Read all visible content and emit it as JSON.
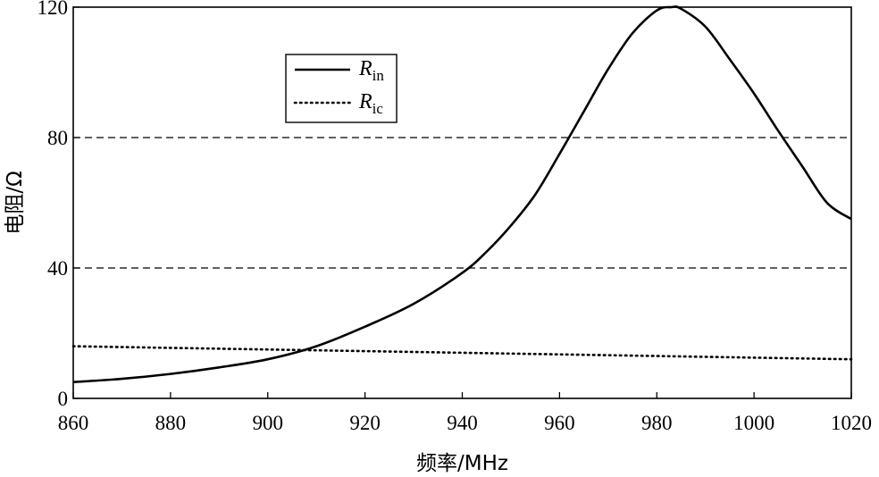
{
  "chart_data": {
    "type": "line",
    "xlabel": "频率/MHz",
    "ylabel": "电阻/Ω",
    "xlim": [
      860,
      1020
    ],
    "ylim": [
      0,
      120
    ],
    "xticks": [
      860,
      880,
      900,
      920,
      940,
      960,
      980,
      1000,
      1020
    ],
    "yticks": [
      0,
      40,
      80,
      120
    ],
    "grid": "horizontal dashed at 40 and 80",
    "legend_position": "top-left",
    "series": [
      {
        "name": "R_in",
        "name_main": "R",
        "name_sub": "in",
        "style": "solid",
        "x": [
          860,
          870,
          880,
          890,
          900,
          910,
          920,
          930,
          940,
          945,
          950,
          955,
          960,
          965,
          970,
          975,
          980,
          983,
          985,
          990,
          995,
          1000,
          1005,
          1010,
          1015,
          1020
        ],
        "y": [
          5,
          6,
          7.5,
          9.5,
          12,
          16,
          22,
          29,
          38.5,
          45,
          53,
          62.5,
          75,
          88,
          101,
          112,
          119,
          120,
          119.5,
          114,
          104,
          93.5,
          82,
          71,
          60,
          55
        ]
      },
      {
        "name": "R_ic",
        "name_main": "R",
        "name_sub": "ic",
        "style": "dotted",
        "x": [
          860,
          880,
          900,
          920,
          940,
          960,
          980,
          1000,
          1020
        ],
        "y": [
          16,
          15.5,
          15,
          14.5,
          14,
          13.5,
          13,
          12.5,
          12
        ]
      }
    ]
  }
}
